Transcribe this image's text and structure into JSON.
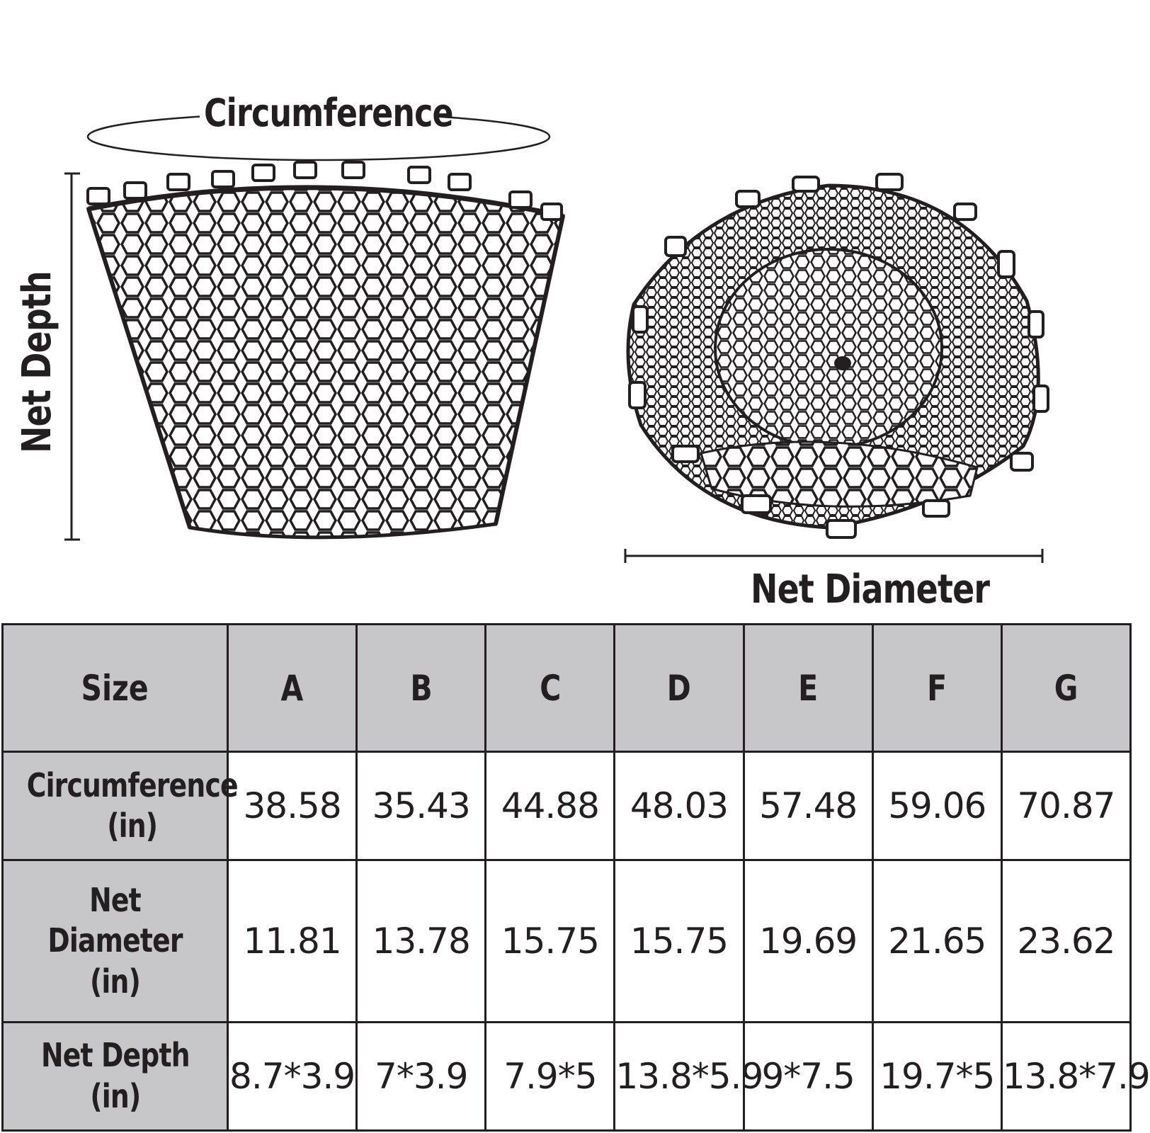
{
  "diagram": {
    "circumference_label": "Circumference",
    "net_depth_label": "Net Depth",
    "net_diameter_label": "Net Diameter"
  },
  "table": {
    "header": [
      "Size",
      "A",
      "B",
      "C",
      "D",
      "E",
      "F",
      "G"
    ],
    "rows": [
      {
        "label_line1": "Circumference",
        "label_line2": "(in)",
        "values": [
          "38.58",
          "35.43",
          "44.88",
          "48.03",
          "57.48",
          "59.06",
          "70.87"
        ]
      },
      {
        "label_line1": "Net Diameter",
        "label_line2": "(in)",
        "values": [
          "11.81",
          "13.78",
          "15.75",
          "15.75",
          "19.69",
          "21.65",
          "23.62"
        ]
      },
      {
        "label_line1": "Net Depth",
        "label_line2": "(in)",
        "values": [
          "8.7*3.9",
          "7*3.9",
          "7.9*5",
          "13.8*5.9",
          "9*7.5",
          "19.7*5",
          "13.8*7.9"
        ]
      }
    ]
  }
}
